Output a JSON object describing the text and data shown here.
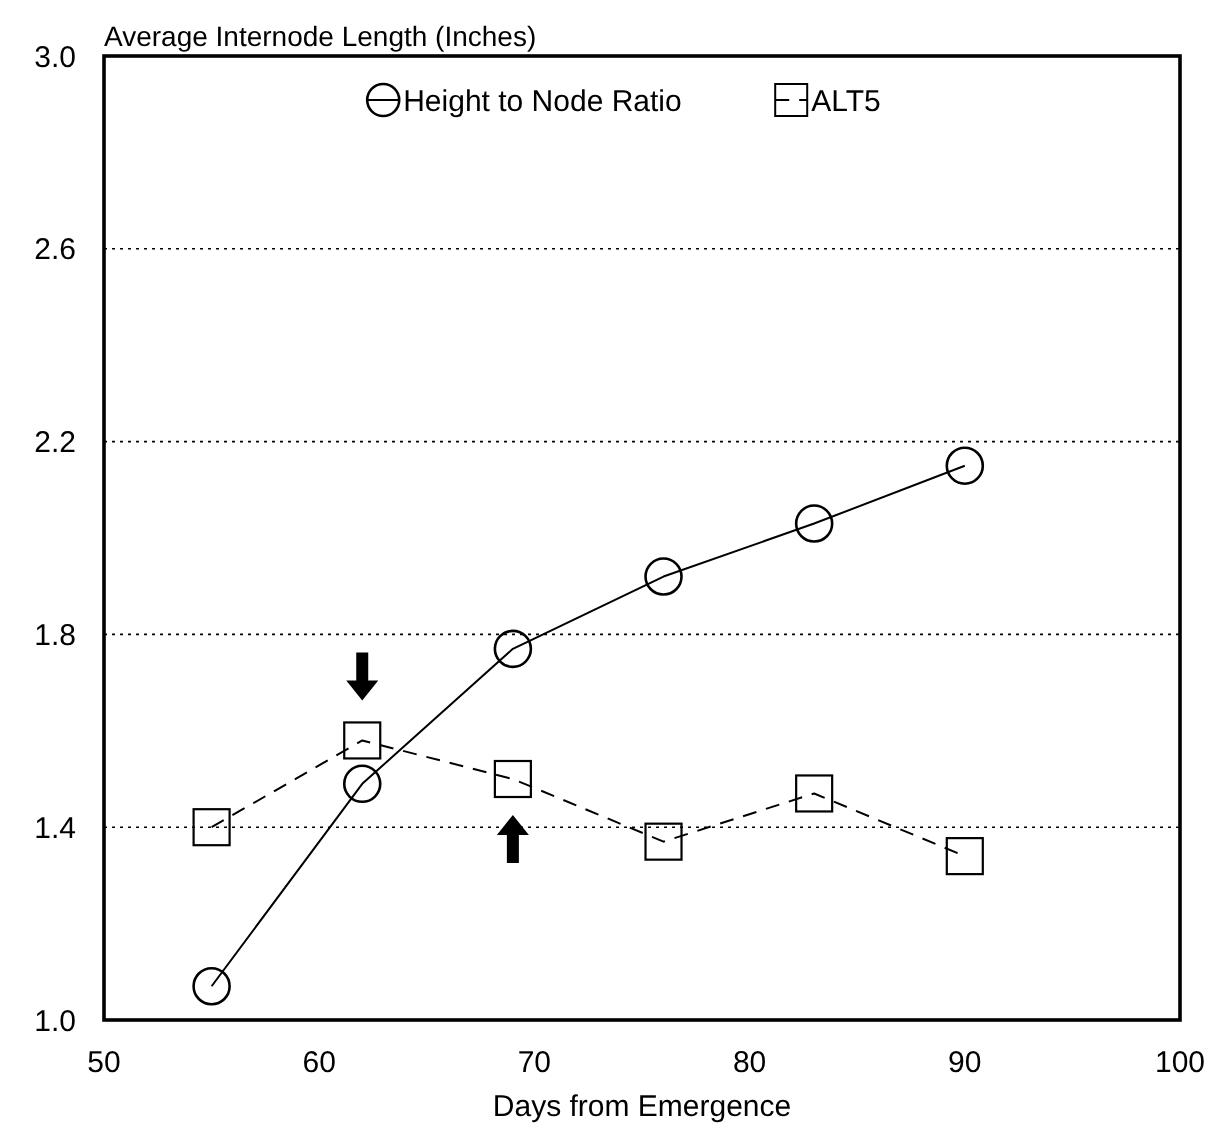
{
  "chart_data": {
    "type": "line",
    "ylabel": "Average Internode Length (Inches)",
    "xlabel": "Days from Emergence",
    "x": [
      55,
      62,
      69,
      76,
      83,
      90
    ],
    "series": [
      {
        "name": "Height to Node Ratio",
        "color": "#000000",
        "marker": "circle",
        "line_style": "solid",
        "values": [
          1.07,
          1.49,
          1.77,
          1.92,
          2.03,
          2.15
        ]
      },
      {
        "name": "ALT5",
        "color": "#000000",
        "marker": "square",
        "line_style": "dashed",
        "values": [
          1.4,
          1.58,
          1.5,
          1.37,
          1.47,
          1.34
        ]
      }
    ],
    "xlim": [
      50,
      100
    ],
    "xticks": [
      50,
      60,
      70,
      80,
      90,
      100
    ],
    "ylim": [
      1.0,
      3.0
    ],
    "yticks": [
      {
        "value": 1.0,
        "label": "1.0"
      },
      1.4,
      1.8,
      2.2,
      2.6,
      {
        "value": 3.0,
        "label": "3.0"
      }
    ],
    "grid": "y",
    "legend": "top"
  }
}
